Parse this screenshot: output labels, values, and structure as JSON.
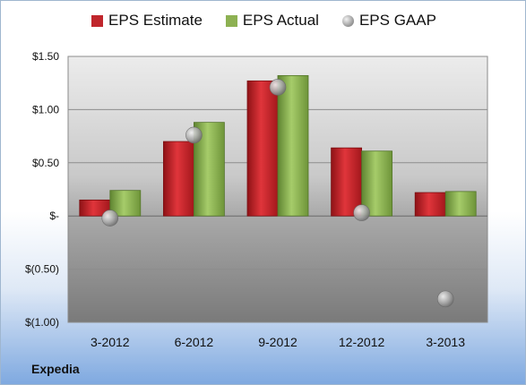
{
  "chart_data": {
    "type": "bar",
    "categories": [
      "3-2012",
      "6-2012",
      "9-2012",
      "12-2012",
      "3-2013"
    ],
    "series": [
      {
        "name": "EPS Estimate",
        "kind": "bar",
        "color": "#c0262c",
        "values": [
          0.15,
          0.7,
          1.27,
          0.64,
          0.22
        ]
      },
      {
        "name": "EPS Actual",
        "kind": "bar",
        "color": "#8db152",
        "values": [
          0.24,
          0.88,
          1.32,
          0.61,
          0.23
        ]
      },
      {
        "name": "EPS GAAP",
        "kind": "scatter",
        "color": "#9a9a9a",
        "values": [
          -0.02,
          0.76,
          1.21,
          0.03,
          -0.78
        ]
      }
    ],
    "yticks": [
      1.5,
      1.0,
      0.5,
      0,
      -0.5,
      -1.0
    ],
    "ytick_labels": [
      "$1.50",
      "$1.00",
      "$0.50",
      "$-",
      "$(0.50)",
      "$(1.00)"
    ],
    "ylim": [
      -1.0,
      1.5
    ],
    "grid": true,
    "legend_position": "top"
  },
  "footer": {
    "company": "Expedia"
  }
}
